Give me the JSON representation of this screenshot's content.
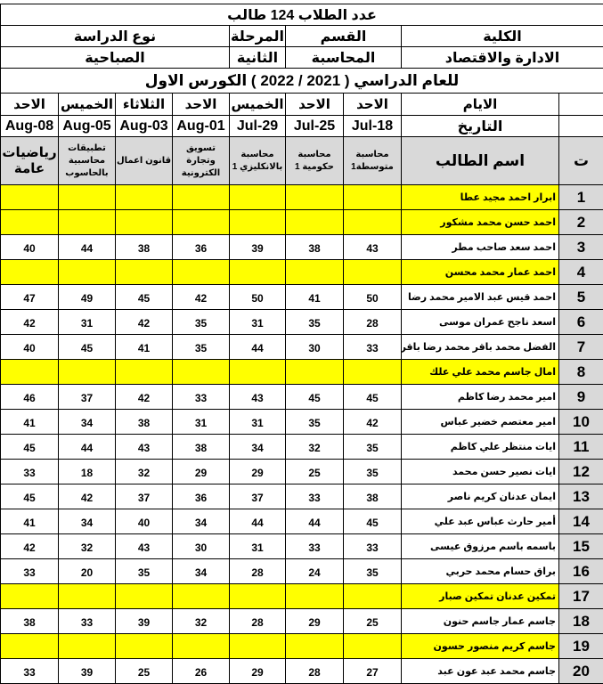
{
  "title": "عدد الطلاب 124 طالب",
  "info": {
    "labels": {
      "college": "الكلية",
      "department": "القسم",
      "stage": "المرحلة",
      "study_type": "نوع الدراسة"
    },
    "values": {
      "college": "الادارة والاقتصاد",
      "department": "المحاسبة",
      "stage": "الثانية",
      "study_type": "الصباحية"
    }
  },
  "course_title": "للعام الدراسي ( 2021 / 2022 ) الكورس الاول",
  "days_label": "الايام",
  "date_label": "التاريخ",
  "number_header": "ت",
  "name_header": "اسم الطالب",
  "highlight_color": "#ffff00",
  "exams": [
    {
      "day": "الاحد",
      "date": "18-Jul",
      "subject": "محاسبة متوسطة1"
    },
    {
      "day": "الاحد",
      "date": "25-Jul",
      "subject": "محاسبة حكومية 1"
    },
    {
      "day": "الخميس",
      "date": "29-Jul",
      "subject": "محاسبة بالانكليزي 1"
    },
    {
      "day": "الاحد",
      "date": "01-Aug",
      "subject": "تسويق وتجارة الكترونية"
    },
    {
      "day": "الثلاثاء",
      "date": "03-Aug",
      "subject": "قانون اعمال"
    },
    {
      "day": "الخميس",
      "date": "05-Aug",
      "subject": "تطبيقات محاسبية بالحاسوب"
    },
    {
      "day": "الاحد",
      "date": "08-Aug",
      "subject": "رياضيات عامة"
    }
  ],
  "students": [
    {
      "n": "1",
      "name": "ابرار احمد مجيد عطا",
      "highlighted": true,
      "scores": [
        "",
        "",
        "",
        "",
        "",
        "",
        ""
      ]
    },
    {
      "n": "2",
      "name": "احمد حسن محمد مشكور",
      "highlighted": true,
      "scores": [
        "",
        "",
        "",
        "",
        "",
        "",
        ""
      ]
    },
    {
      "n": "3",
      "name": "احمد سعد صاحب مطر",
      "highlighted": false,
      "scores": [
        "43",
        "38",
        "39",
        "36",
        "38",
        "44",
        "40"
      ]
    },
    {
      "n": "4",
      "name": "احمد عمار محمد محسن",
      "highlighted": true,
      "scores": [
        "",
        "",
        "",
        "",
        "",
        "",
        ""
      ]
    },
    {
      "n": "5",
      "name": "احمد قيس عبد الامير محمد رضا",
      "highlighted": false,
      "scores": [
        "50",
        "41",
        "50",
        "42",
        "45",
        "49",
        "47"
      ]
    },
    {
      "n": "6",
      "name": "اسعد ناجح عمران موسى",
      "highlighted": false,
      "scores": [
        "28",
        "35",
        "31",
        "35",
        "42",
        "31",
        "42"
      ]
    },
    {
      "n": "7",
      "name": "الفضل محمد باقر محمد رضا باقر",
      "highlighted": false,
      "scores": [
        "33",
        "30",
        "44",
        "35",
        "41",
        "45",
        "40"
      ]
    },
    {
      "n": "8",
      "name": "امال جاسم محمد علي علك",
      "highlighted": true,
      "scores": [
        "",
        "",
        "",
        "",
        "",
        "",
        ""
      ]
    },
    {
      "n": "9",
      "name": "امير محمد رضا كاظم",
      "highlighted": false,
      "scores": [
        "45",
        "45",
        "43",
        "33",
        "42",
        "37",
        "46"
      ]
    },
    {
      "n": "10",
      "name": "امير معتصم خضير عباس",
      "highlighted": false,
      "scores": [
        "42",
        "35",
        "31",
        "31",
        "38",
        "34",
        "41"
      ]
    },
    {
      "n": "11",
      "name": "ايات منتظر علي كاظم",
      "highlighted": false,
      "scores": [
        "35",
        "32",
        "34",
        "38",
        "43",
        "44",
        "45"
      ]
    },
    {
      "n": "12",
      "name": "ايات نصير حسن محمد",
      "highlighted": false,
      "scores": [
        "35",
        "25",
        "29",
        "29",
        "32",
        "18",
        "33"
      ]
    },
    {
      "n": "13",
      "name": "ايمان عدنان كريم ناصر",
      "highlighted": false,
      "scores": [
        "38",
        "33",
        "37",
        "36",
        "37",
        "42",
        "45"
      ]
    },
    {
      "n": "14",
      "name": "أمير حارث عباس عبد علي",
      "highlighted": false,
      "scores": [
        "45",
        "44",
        "44",
        "34",
        "40",
        "34",
        "41"
      ]
    },
    {
      "n": "15",
      "name": "باسمه باسم مرزوق عيسى",
      "highlighted": false,
      "scores": [
        "33",
        "33",
        "31",
        "30",
        "43",
        "32",
        "42"
      ]
    },
    {
      "n": "16",
      "name": "براق حسام محمد حربي",
      "highlighted": false,
      "scores": [
        "35",
        "24",
        "28",
        "34",
        "35",
        "20",
        "33"
      ]
    },
    {
      "n": "17",
      "name": "تمكين عدنان تمكين صبار",
      "highlighted": true,
      "scores": [
        "",
        "",
        "",
        "",
        "",
        "",
        ""
      ]
    },
    {
      "n": "18",
      "name": "جاسم عمار جاسم حنون",
      "highlighted": false,
      "scores": [
        "25",
        "29",
        "28",
        "32",
        "39",
        "33",
        "38"
      ]
    },
    {
      "n": "19",
      "name": "جاسم كريم منصور حسون",
      "highlighted": true,
      "scores": [
        "",
        "",
        "",
        "",
        "",
        "",
        ""
      ]
    },
    {
      "n": "20",
      "name": "جاسم محمد عبد عون عبد",
      "highlighted": false,
      "scores": [
        "27",
        "28",
        "29",
        "26",
        "25",
        "39",
        "33"
      ]
    }
  ]
}
